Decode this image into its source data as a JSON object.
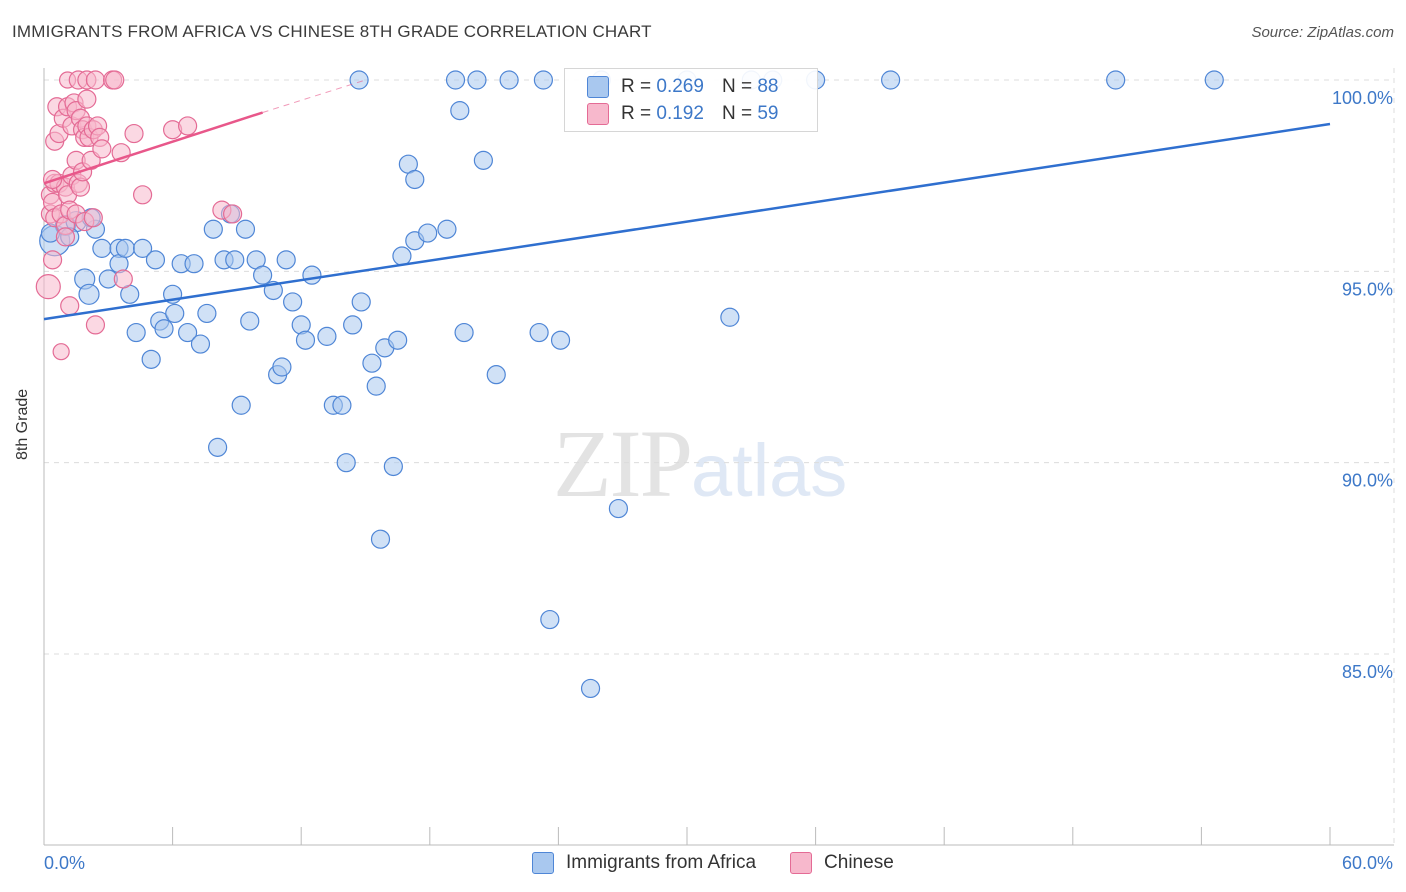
{
  "title": "IMMIGRANTS FROM AFRICA VS CHINESE 8TH GRADE CORRELATION CHART",
  "source": "Source: ZipAtlas.com",
  "watermark": {
    "zip": "ZIP",
    "atlas": "atlas"
  },
  "legend": {
    "rows": [
      {
        "r_label": "R =",
        "r_value": "0.269",
        "n_label": "N =",
        "n_value": "88"
      },
      {
        "r_label": "R =",
        "r_value": "0.192",
        "n_label": "N =",
        "n_value": "59"
      }
    ]
  },
  "bottom_legend": [
    "Immigrants from Africa",
    "Chinese"
  ],
  "colors": {
    "africa_fill": "#a9c8ef",
    "africa_stroke": "#4f86d6",
    "africa_line": "#2f6fcf",
    "chinese_fill": "#f7b8cc",
    "chinese_stroke": "#e46b95",
    "chinese_line": "#e8578a",
    "axis_text": "#3d78c8",
    "grid": "#dcdcdc"
  },
  "chart_data": {
    "type": "scatter",
    "title": "IMMIGRANTS FROM AFRICA VS CHINESE 8TH GRADE CORRELATION CHART",
    "xlabel": "",
    "ylabel": "8th Grade",
    "xlim": [
      0,
      60
    ],
    "ylim": [
      80.3,
      101
    ],
    "x_tick_labels": [
      "0.0%",
      "60.0%"
    ],
    "y_ticks": [
      85,
      90,
      95,
      100
    ],
    "y_tick_labels": [
      "85.0%",
      "90.0%",
      "95.0%",
      "100.0%"
    ],
    "grid": true,
    "series": [
      {
        "name": "Immigrants from Africa",
        "r": 0.269,
        "n": 88,
        "trend": {
          "x": [
            0,
            60
          ],
          "y": [
            93.75,
            98.85
          ],
          "dashed": false
        },
        "points": [
          [
            0.5,
            95.8,
            15
          ],
          [
            1.0,
            96.2,
            10
          ],
          [
            1.5,
            96.3,
            10
          ],
          [
            2.4,
            96.1,
            9
          ],
          [
            1.9,
            94.8,
            10
          ],
          [
            2.1,
            94.4,
            10
          ],
          [
            2.7,
            95.6,
            9
          ],
          [
            3.0,
            94.8,
            9
          ],
          [
            3.5,
            95.6,
            9
          ],
          [
            3.5,
            95.2,
            9
          ],
          [
            3.8,
            95.6,
            9
          ],
          [
            4.0,
            94.4,
            9
          ],
          [
            4.3,
            93.4,
            9
          ],
          [
            4.6,
            95.6,
            9
          ],
          [
            5.0,
            92.7,
            9
          ],
          [
            5.2,
            95.3,
            9
          ],
          [
            5.4,
            93.7,
            9
          ],
          [
            5.6,
            93.5,
            9
          ],
          [
            6.0,
            94.4,
            9
          ],
          [
            6.1,
            93.9,
            9
          ],
          [
            6.4,
            95.2,
            9
          ],
          [
            6.7,
            93.4,
            9
          ],
          [
            7.0,
            95.2,
            9
          ],
          [
            7.3,
            93.1,
            9
          ],
          [
            7.6,
            93.9,
            9
          ],
          [
            7.9,
            96.1,
            9
          ],
          [
            8.1,
            90.4,
            9
          ],
          [
            8.4,
            95.3,
            9
          ],
          [
            8.7,
            96.5,
            9
          ],
          [
            8.9,
            95.3,
            9
          ],
          [
            9.2,
            91.5,
            9
          ],
          [
            9.4,
            96.1,
            9
          ],
          [
            9.6,
            93.7,
            9
          ],
          [
            9.9,
            95.3,
            9
          ],
          [
            10.2,
            94.9,
            9
          ],
          [
            10.7,
            94.5,
            9
          ],
          [
            10.9,
            92.3,
            9
          ],
          [
            11.1,
            92.5,
            9
          ],
          [
            11.3,
            95.3,
            9
          ],
          [
            11.6,
            94.2,
            9
          ],
          [
            12.0,
            93.6,
            9
          ],
          [
            12.2,
            93.2,
            9
          ],
          [
            12.5,
            94.9,
            9
          ],
          [
            13.2,
            93.3,
            9
          ],
          [
            13.5,
            91.5,
            9
          ],
          [
            13.9,
            91.5,
            9
          ],
          [
            14.1,
            90.0,
            9
          ],
          [
            14.4,
            93.6,
            9
          ],
          [
            14.7,
            100.0,
            9
          ],
          [
            14.8,
            94.2,
            9
          ],
          [
            15.3,
            92.6,
            9
          ],
          [
            15.5,
            92.0,
            9
          ],
          [
            15.7,
            88.0,
            9
          ],
          [
            15.9,
            93.0,
            9
          ],
          [
            16.3,
            89.9,
            9
          ],
          [
            16.5,
            93.2,
            9
          ],
          [
            16.7,
            95.4,
            9
          ],
          [
            17.0,
            97.8,
            9
          ],
          [
            17.3,
            97.4,
            9
          ],
          [
            17.3,
            95.8,
            9
          ],
          [
            17.9,
            96.0,
            9
          ],
          [
            18.8,
            96.1,
            9
          ],
          [
            19.2,
            100.0,
            9
          ],
          [
            19.4,
            99.2,
            9
          ],
          [
            19.6,
            93.4,
            9
          ],
          [
            20.2,
            100.0,
            9
          ],
          [
            20.5,
            97.9,
            9
          ],
          [
            21.1,
            92.3,
            9
          ],
          [
            21.7,
            100.0,
            9
          ],
          [
            23.1,
            93.4,
            9
          ],
          [
            23.3,
            100.0,
            9
          ],
          [
            23.6,
            85.9,
            9
          ],
          [
            24.1,
            93.2,
            9
          ],
          [
            25.5,
            84.1,
            9
          ],
          [
            26.0,
            100.0,
            9
          ],
          [
            26.8,
            88.8,
            9
          ],
          [
            30.0,
            100.0,
            9
          ],
          [
            32.0,
            93.8,
            9
          ],
          [
            33.0,
            100.0,
            9
          ],
          [
            34.0,
            100.0,
            9
          ],
          [
            36.0,
            100.0,
            9
          ],
          [
            39.5,
            100.0,
            9
          ],
          [
            50.0,
            100.0,
            9
          ],
          [
            54.6,
            100.0,
            9
          ],
          [
            0.3,
            96.0,
            9
          ],
          [
            1.2,
            95.9,
            9
          ],
          [
            2.2,
            96.4,
            9
          ]
        ]
      },
      {
        "name": "Chinese",
        "r": 0.192,
        "n": 59,
        "trend": {
          "x": [
            0,
            10.2
          ],
          "y": [
            97.3,
            99.15
          ],
          "dashed_ext": [
            10.2,
            15.0,
            99.15,
            100.0
          ]
        },
        "points": [
          [
            0.2,
            94.6,
            12
          ],
          [
            0.3,
            96.5,
            9
          ],
          [
            0.3,
            97.0,
            9
          ],
          [
            0.4,
            96.8,
            9
          ],
          [
            0.4,
            95.3,
            9
          ],
          [
            0.5,
            97.3,
            9
          ],
          [
            0.5,
            96.4,
            9
          ],
          [
            0.5,
            98.4,
            9
          ],
          [
            0.6,
            99.3,
            9
          ],
          [
            0.7,
            97.3,
            9
          ],
          [
            0.7,
            98.6,
            9
          ],
          [
            0.8,
            96.5,
            9
          ],
          [
            0.8,
            92.9,
            8
          ],
          [
            0.9,
            99.0,
            9
          ],
          [
            1.0,
            97.2,
            9
          ],
          [
            1.0,
            96.2,
            9
          ],
          [
            1.0,
            95.9,
            9
          ],
          [
            1.1,
            99.3,
            9
          ],
          [
            1.1,
            100.0,
            8
          ],
          [
            1.1,
            97.0,
            9
          ],
          [
            1.2,
            94.1,
            9
          ],
          [
            1.2,
            96.6,
            9
          ],
          [
            1.3,
            98.8,
            9
          ],
          [
            1.3,
            97.5,
            9
          ],
          [
            1.4,
            99.4,
            9
          ],
          [
            1.5,
            99.2,
            9
          ],
          [
            1.5,
            97.9,
            9
          ],
          [
            1.5,
            96.5,
            9
          ],
          [
            1.6,
            100.0,
            9
          ],
          [
            1.6,
            97.3,
            9
          ],
          [
            1.7,
            99.0,
            9
          ],
          [
            1.7,
            97.2,
            9
          ],
          [
            1.8,
            98.7,
            9
          ],
          [
            1.8,
            97.6,
            9
          ],
          [
            1.9,
            98.5,
            9
          ],
          [
            1.9,
            96.3,
            9
          ],
          [
            2.0,
            98.8,
            9
          ],
          [
            2.0,
            99.5,
            9
          ],
          [
            2.0,
            100.0,
            9
          ],
          [
            2.1,
            98.5,
            9
          ],
          [
            2.2,
            97.9,
            9
          ],
          [
            2.3,
            98.7,
            9
          ],
          [
            2.3,
            96.4,
            9
          ],
          [
            2.4,
            93.6,
            9
          ],
          [
            2.4,
            100.0,
            9
          ],
          [
            2.5,
            98.8,
            9
          ],
          [
            2.6,
            98.5,
            9
          ],
          [
            2.7,
            98.2,
            9
          ],
          [
            3.2,
            100.0,
            9
          ],
          [
            3.3,
            100.0,
            9
          ],
          [
            3.6,
            98.1,
            9
          ],
          [
            3.7,
            94.8,
            9
          ],
          [
            4.2,
            98.6,
            9
          ],
          [
            4.6,
            97.0,
            9
          ],
          [
            6.0,
            98.7,
            9
          ],
          [
            6.7,
            98.8,
            9
          ],
          [
            8.3,
            96.6,
            9
          ],
          [
            8.8,
            96.5,
            9
          ],
          [
            0.4,
            97.4,
            9
          ]
        ]
      }
    ]
  }
}
